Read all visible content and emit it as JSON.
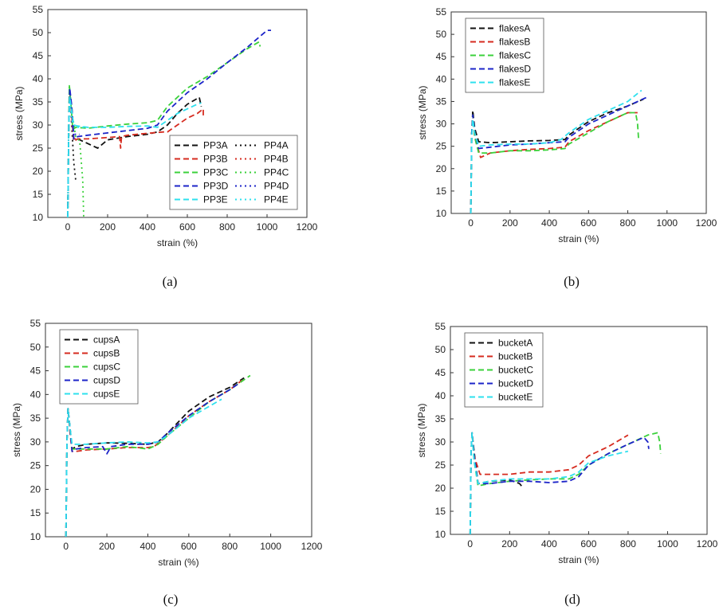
{
  "figure": {
    "captions": [
      "(a)",
      "(b)",
      "(c)",
      "(d)"
    ],
    "caption_parts": [
      {
        "open": "(",
        "letter": "a",
        "close": ")"
      },
      {
        "open": "(",
        "letter": "b",
        "close": ")"
      },
      {
        "open": "(",
        "letter": "c",
        "close": ")"
      },
      {
        "open": "(",
        "letter": "d",
        "close": ")"
      }
    ]
  },
  "colors": {
    "black": "#111111",
    "red": "#d62b1f",
    "green": "#3bd13b",
    "blue": "#1c24c8",
    "cyan": "#2ee0ee"
  },
  "chart_data": [
    {
      "id": "a",
      "type": "line",
      "xlabel": "strain (%)",
      "ylabel": "stress (MPa)",
      "xlim": [
        -100,
        1200
      ],
      "ylim": [
        10,
        55
      ],
      "xticks": [
        0,
        200,
        400,
        600,
        800,
        1000,
        1200
      ],
      "yticks": [
        10,
        15,
        20,
        25,
        30,
        35,
        40,
        45,
        50,
        55
      ],
      "legend": {
        "position": "lower-right",
        "columns": 2
      },
      "series": [
        {
          "name": "PP3A",
          "color": "black",
          "style": "dash",
          "x": [
            0,
            5,
            10,
            20,
            30,
            50,
            100,
            150,
            200,
            300,
            400,
            450,
            500,
            550,
            600,
            640,
            660,
            670
          ],
          "y": [
            10,
            30,
            37,
            34,
            27,
            27,
            26,
            25,
            26.8,
            27.5,
            28,
            28.5,
            30,
            32.5,
            34.5,
            35.5,
            36,
            34
          ]
        },
        {
          "name": "PP4A",
          "color": "black",
          "style": "dot",
          "x": [
            0,
            5,
            10,
            20,
            30,
            40
          ],
          "y": [
            10,
            30,
            37,
            30,
            22,
            18
          ]
        },
        {
          "name": "PP3B",
          "color": "red",
          "style": "dash",
          "x": [
            0,
            5,
            10,
            20,
            30,
            50,
            100,
            200,
            260,
            265,
            270,
            300,
            400,
            480,
            500,
            550,
            600,
            650,
            680,
            680
          ],
          "y": [
            10,
            30,
            37,
            32,
            26.5,
            27,
            27,
            27.3,
            27.5,
            25,
            27.5,
            27.8,
            28.2,
            28.5,
            28.5,
            30,
            31.5,
            32.5,
            33.5,
            32
          ]
        },
        {
          "name": "PP4B",
          "color": "red",
          "style": "dot",
          "x": [
            0,
            5,
            10,
            20,
            30,
            60
          ],
          "y": [
            10,
            30,
            36,
            30,
            27,
            27
          ]
        },
        {
          "name": "PP3C",
          "color": "green",
          "style": "dash",
          "x": [
            0,
            5,
            8,
            15,
            25,
            40,
            100,
            200,
            300,
            400,
            450,
            500,
            600,
            700,
            800,
            900,
            960,
            965
          ],
          "y": [
            10,
            30,
            38.5,
            35,
            29,
            29.5,
            29.3,
            29.8,
            30.2,
            30.5,
            31,
            34,
            38,
            40.5,
            43.5,
            46.5,
            48,
            47
          ]
        },
        {
          "name": "PP4C",
          "color": "green",
          "style": "dot",
          "x": [
            0,
            5,
            8,
            20,
            40,
            60,
            75,
            80
          ],
          "y": [
            10,
            30,
            38.5,
            33,
            27.5,
            26.5,
            18,
            10
          ]
        },
        {
          "name": "PP3D",
          "color": "blue",
          "style": "dash",
          "x": [
            0,
            5,
            10,
            20,
            30,
            50,
            100,
            200,
            300,
            400,
            450,
            500,
            600,
            700,
            800,
            900,
            1000,
            1020
          ],
          "y": [
            10,
            30,
            38,
            34,
            27,
            27.5,
            27.8,
            28.3,
            28.8,
            29.3,
            30,
            33,
            37,
            40,
            43.5,
            46.8,
            50.5,
            50.5
          ]
        },
        {
          "name": "PP4D",
          "color": "blue",
          "style": "dot",
          "x": [
            0,
            5,
            10,
            20,
            30,
            60
          ],
          "y": [
            10,
            30,
            37,
            31,
            28,
            28
          ]
        },
        {
          "name": "PP3E",
          "color": "cyan",
          "style": "dash",
          "x": [
            0,
            5,
            10,
            20,
            30,
            50,
            100,
            200,
            300,
            400,
            450,
            500,
            550,
            600,
            650,
            670
          ],
          "y": [
            10,
            30,
            36,
            33,
            30,
            29.8,
            29.5,
            29.5,
            29.7,
            29.8,
            29.5,
            31,
            32.5,
            33.5,
            34.5,
            34.8
          ]
        },
        {
          "name": "PP4E",
          "color": "cyan",
          "style": "dot",
          "x": [
            0,
            5,
            10,
            20,
            40,
            80
          ],
          "y": [
            10,
            30,
            36,
            31,
            29.5,
            29.5
          ]
        }
      ]
    },
    {
      "id": "b",
      "type": "line",
      "xlabel": "strain (%)",
      "ylabel": "stress (MPa)",
      "xlim": [
        -100,
        1200
      ],
      "ylim": [
        10,
        55
      ],
      "xticks": [
        0,
        200,
        400,
        600,
        800,
        1000,
        1200
      ],
      "yticks": [
        10,
        15,
        20,
        25,
        30,
        35,
        40,
        45,
        50,
        55
      ],
      "legend": {
        "position": "top-left",
        "columns": 1
      },
      "series": [
        {
          "name": "flakesA",
          "color": "black",
          "style": "dash",
          "x": [
            0,
            5,
            10,
            20,
            40,
            100,
            200,
            300,
            400,
            480,
            500,
            600,
            700,
            800,
            880
          ],
          "y": [
            10,
            28,
            33,
            29,
            26,
            25.8,
            26,
            26.2,
            26.3,
            26.5,
            27.5,
            30.5,
            32.5,
            34,
            35.5
          ]
        },
        {
          "name": "flakesB",
          "color": "red",
          "style": "dash",
          "x": [
            0,
            5,
            10,
            20,
            50,
            100,
            200,
            300,
            400,
            480,
            500,
            600,
            700,
            800,
            850
          ],
          "y": [
            10,
            28,
            32,
            27,
            22.5,
            23.5,
            24,
            24.3,
            24.5,
            24.8,
            26,
            28.5,
            30.5,
            32.5,
            32.5
          ]
        },
        {
          "name": "flakesC",
          "color": "green",
          "style": "dash",
          "x": [
            0,
            5,
            10,
            20,
            40,
            100,
            200,
            300,
            400,
            480,
            500,
            600,
            700,
            800,
            840,
            850,
            855
          ],
          "y": [
            10,
            28,
            32,
            27,
            23.5,
            23.5,
            24,
            24,
            24.2,
            24.5,
            25.5,
            28,
            30.5,
            32.5,
            32.5,
            30,
            26.5
          ]
        },
        {
          "name": "flakesD",
          "color": "blue",
          "style": "dash",
          "x": [
            0,
            5,
            10,
            20,
            40,
            100,
            200,
            300,
            400,
            480,
            500,
            600,
            700,
            800,
            900
          ],
          "y": [
            10,
            28,
            32,
            28,
            24.5,
            24.8,
            25.3,
            25.5,
            25.8,
            26,
            27,
            30,
            32,
            34,
            36
          ]
        },
        {
          "name": "flakesE",
          "color": "cyan",
          "style": "dash",
          "x": [
            0,
            5,
            10,
            20,
            40,
            100,
            200,
            300,
            400,
            460,
            500,
            600,
            700,
            800,
            870
          ],
          "y": [
            10,
            27,
            31,
            28,
            25,
            25.3,
            25.5,
            25.5,
            25.8,
            26.5,
            28,
            31,
            33,
            35,
            37.5
          ]
        }
      ]
    },
    {
      "id": "c",
      "type": "line",
      "xlabel": "strain (%)",
      "ylabel": "stress (MPa)",
      "xlim": [
        -100,
        1200
      ],
      "ylim": [
        10,
        55
      ],
      "xticks": [
        0,
        200,
        400,
        600,
        800,
        1000,
        1200
      ],
      "yticks": [
        10,
        15,
        20,
        25,
        30,
        35,
        40,
        45,
        50,
        55
      ],
      "legend": {
        "position": "top-left",
        "columns": 1
      },
      "series": [
        {
          "name": "cupsA",
          "color": "black",
          "style": "dash",
          "x": [
            0,
            5,
            10,
            20,
            30,
            50,
            100,
            200,
            300,
            400,
            450,
            500,
            600,
            700,
            800,
            870
          ],
          "y": [
            10,
            30,
            37,
            33,
            28.5,
            29,
            29.5,
            29.8,
            29.7,
            29.5,
            30,
            32,
            36.5,
            39.5,
            41.5,
            43.5
          ]
        },
        {
          "name": "cupsB",
          "color": "red",
          "style": "dash",
          "x": [
            0,
            5,
            10,
            20,
            30,
            50,
            100,
            200,
            300,
            400,
            430,
            500,
            600,
            700,
            800,
            860
          ],
          "y": [
            10,
            30,
            37,
            32,
            28,
            28,
            28.3,
            28.5,
            28.8,
            28.8,
            29,
            31.5,
            35.5,
            38.5,
            41,
            43
          ]
        },
        {
          "name": "cupsC",
          "color": "green",
          "style": "dash",
          "x": [
            0,
            5,
            10,
            20,
            30,
            50,
            100,
            200,
            300,
            400,
            450,
            500,
            600,
            700,
            800,
            900
          ],
          "y": [
            10,
            30,
            37,
            33,
            28.5,
            28.5,
            28.5,
            28.5,
            29,
            28.5,
            29.5,
            31.5,
            35,
            38.5,
            41,
            44
          ]
        },
        {
          "name": "cupsD",
          "color": "blue",
          "style": "dash",
          "x": [
            0,
            5,
            10,
            20,
            30,
            50,
            100,
            180,
            200,
            220,
            300,
            400,
            450,
            500,
            600,
            700,
            800,
            850
          ],
          "y": [
            10,
            30,
            37,
            33,
            28,
            28.5,
            28.8,
            29,
            27.5,
            29,
            29.5,
            29.5,
            30,
            32,
            35.5,
            38.5,
            41,
            42.5
          ]
        },
        {
          "name": "cupsE",
          "color": "cyan",
          "style": "dash",
          "x": [
            0,
            5,
            10,
            20,
            30,
            50,
            100,
            200,
            300,
            400,
            450,
            500,
            600,
            700,
            760
          ],
          "y": [
            10,
            30,
            37,
            33,
            29.5,
            29.5,
            29.5,
            29.8,
            30,
            29.8,
            30,
            31.5,
            35,
            37.5,
            39
          ]
        }
      ]
    },
    {
      "id": "d",
      "type": "line",
      "xlabel": "strain (%)",
      "ylabel": "stress (MPa)",
      "xlim": [
        -100,
        1200
      ],
      "ylim": [
        10,
        55
      ],
      "xticks": [
        0,
        200,
        400,
        600,
        800,
        1000,
        1200
      ],
      "yticks": [
        10,
        15,
        20,
        25,
        30,
        35,
        40,
        45,
        50,
        55
      ],
      "legend": {
        "position": "top-left",
        "columns": 1
      },
      "series": [
        {
          "name": "bucketA",
          "color": "black",
          "style": "dash",
          "x": [
            0,
            5,
            10,
            20,
            40,
            100,
            200,
            250,
            270
          ],
          "y": [
            10,
            28,
            32,
            28,
            21,
            21.5,
            21.8,
            21,
            20
          ]
        },
        {
          "name": "bucketB",
          "color": "red",
          "style": "dash",
          "x": [
            0,
            5,
            10,
            20,
            50,
            100,
            200,
            300,
            400,
            500,
            550,
            600,
            700,
            800
          ],
          "y": [
            10,
            28,
            32,
            27,
            23,
            23,
            23,
            23.5,
            23.5,
            24,
            25,
            27,
            29,
            31.5
          ]
        },
        {
          "name": "bucketC",
          "color": "green",
          "style": "dash",
          "x": [
            0,
            5,
            10,
            20,
            40,
            100,
            200,
            300,
            400,
            500,
            550,
            600,
            700,
            800,
            900,
            950,
            960,
            965
          ],
          "y": [
            10,
            28,
            32,
            26,
            20.5,
            21,
            21.5,
            21.8,
            22,
            22,
            23,
            25,
            27.5,
            29.5,
            31.5,
            32,
            30,
            27.5
          ]
        },
        {
          "name": "bucketD",
          "color": "blue",
          "style": "dash",
          "x": [
            0,
            5,
            10,
            20,
            40,
            100,
            200,
            300,
            400,
            500,
            550,
            600,
            700,
            800,
            880,
            900,
            905
          ],
          "y": [
            10,
            28,
            32,
            27,
            21,
            21,
            21.5,
            21.5,
            21.2,
            21.5,
            22.5,
            25,
            27.5,
            29.5,
            31,
            30,
            28.5
          ]
        },
        {
          "name": "bucketE",
          "color": "cyan",
          "style": "dash",
          "x": [
            0,
            5,
            10,
            20,
            40,
            100,
            200,
            300,
            400,
            500,
            550,
            600,
            700,
            800
          ],
          "y": [
            10,
            28,
            32,
            26,
            21,
            21.5,
            22,
            22,
            22,
            22.5,
            23.5,
            25.5,
            27,
            28
          ]
        }
      ]
    }
  ]
}
